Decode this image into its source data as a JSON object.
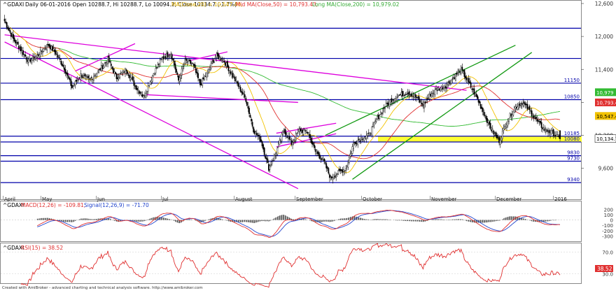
{
  "price_panel": {
    "ticker": "^GDAXI",
    "info_text": "Daily 06-01-2016 Open 10288.7, Hi 10288.7, Lo 10094.2, Close 10134.7 (-1.7%)",
    "ma_short_label": "MA(Close,20) = 10,547.40,",
    "ma_mid_label": "Mid MA(Close,50) = 10,793.43,",
    "ma_long_label": "Long MA(Close,200) = 10,979.02",
    "colors": {
      "ma_short": "#f2c200",
      "ma_mid": "#e03030",
      "ma_long": "#33bb33",
      "channel": "#dd00dd",
      "trend": "#119911",
      "level": "#0000aa",
      "support_zone": "#ffff33"
    }
  },
  "macd_panel": {
    "ticker": "^GDAXI",
    "macd_label": "MACD(12,26) = -109.81,",
    "signal_label": "Signal(12,26,9) = -71.70",
    "colors": {
      "macd": "#e03030",
      "signal": "#2244cc",
      "histogram": "#000000"
    }
  },
  "rsi_panel": {
    "ticker": "^GDAXI",
    "rsi_label": "RSI(15) = 38.52",
    "value_tag": "38.52",
    "colors": {
      "rsi": "#e03030"
    }
  },
  "footer": {
    "credit": "Created with AmiBroker - advanced charting and technical analysis software. http://www.amibroker.com"
  },
  "chart_data": [
    {
      "type": "candlestick",
      "title": "^GDAXI - Daily 06-01-2016",
      "x_months": [
        "April",
        "May",
        "Jun",
        "Jul",
        "August",
        "September",
        "October",
        "November",
        "December",
        "2016"
      ],
      "y_ticks": [
        12600,
        12000,
        11400,
        10800,
        10200,
        9600
      ],
      "ylim": [
        9100,
        12600
      ],
      "grid": false,
      "levels": [
        {
          "value": 12150,
          "label": ""
        },
        {
          "value": 11600,
          "label": ""
        },
        {
          "value": 11150,
          "label": "11150"
        },
        {
          "value": 10850,
          "label": "10850"
        },
        {
          "value": 10185,
          "label": "10185"
        },
        {
          "value": 10080,
          "label": "10080"
        },
        {
          "value": 9830,
          "label": "9830"
        },
        {
          "value": 9730,
          "label": "9730"
        },
        {
          "value": 9340,
          "label": "9340"
        }
      ],
      "support_zone": [
        10080,
        10185
      ],
      "value_tags": [
        {
          "value": 10979,
          "label": "10,979",
          "series": "long"
        },
        {
          "value": 10793,
          "label": "10,793.4",
          "series": "mid"
        },
        {
          "value": 10547,
          "label": "10,547.4",
          "series": "short"
        },
        {
          "value": 10134.7,
          "label": "10,134.7",
          "series": "close"
        }
      ],
      "close_anchors": [
        [
          0,
          12280
        ],
        [
          8,
          11950
        ],
        [
          15,
          11760
        ],
        [
          22,
          11550
        ],
        [
          30,
          11650
        ],
        [
          40,
          11850
        ],
        [
          47,
          11700
        ],
        [
          55,
          11420
        ],
        [
          62,
          11070
        ],
        [
          70,
          11300
        ],
        [
          78,
          11200
        ],
        [
          87,
          11380
        ],
        [
          95,
          11580
        ],
        [
          103,
          11250
        ],
        [
          112,
          11400
        ],
        [
          120,
          11100
        ],
        [
          128,
          10900
        ],
        [
          137,
          11330
        ],
        [
          145,
          11600
        ],
        [
          153,
          11700
        ],
        [
          160,
          11200
        ],
        [
          166,
          11550
        ],
        [
          173,
          11500
        ],
        [
          180,
          11120
        ],
        [
          187,
          11350
        ],
        [
          194,
          11650
        ],
        [
          201,
          11580
        ],
        [
          208,
          11350
        ],
        [
          215,
          11100
        ],
        [
          222,
          10850
        ],
        [
          229,
          10300
        ],
        [
          236,
          10100
        ],
        [
          243,
          9600
        ],
        [
          250,
          9900
        ],
        [
          257,
          10300
        ],
        [
          264,
          10050
        ],
        [
          271,
          10300
        ],
        [
          279,
          10250
        ],
        [
          286,
          9900
        ],
        [
          293,
          9750
        ],
        [
          300,
          9420
        ],
        [
          307,
          9520
        ],
        [
          314,
          9600
        ],
        [
          321,
          10050
        ],
        [
          328,
          10150
        ],
        [
          335,
          10200
        ],
        [
          342,
          10480
        ],
        [
          349,
          10700
        ],
        [
          356,
          10850
        ],
        [
          363,
          10930
        ],
        [
          371,
          10980
        ],
        [
          378,
          10900
        ],
        [
          385,
          10750
        ],
        [
          392,
          10950
        ],
        [
          399,
          11050
        ],
        [
          406,
          11100
        ],
        [
          413,
          11250
        ],
        [
          420,
          11400
        ],
        [
          427,
          11150
        ],
        [
          434,
          10900
        ],
        [
          441,
          10600
        ],
        [
          448,
          10300
        ],
        [
          455,
          10100
        ],
        [
          462,
          10450
        ],
        [
          469,
          10700
        ],
        [
          476,
          10800
        ],
        [
          483,
          10650
        ],
        [
          490,
          10450
        ],
        [
          497,
          10300
        ],
        [
          504,
          10250
        ],
        [
          511,
          10134.7
        ]
      ],
      "channel_lines": [
        [
          [
            0,
            11900
          ],
          [
            270,
            9230
          ]
        ],
        [
          [
            0,
            12030
          ],
          [
            425,
            11020
          ]
        ],
        [
          [
            65,
            11370
          ],
          [
            120,
            11870
          ]
        ],
        [
          [
            130,
            10940
          ],
          [
            270,
            10800
          ]
        ],
        [
          [
            170,
            11560
          ],
          [
            205,
            11720
          ]
        ],
        [
          [
            250,
            10240
          ],
          [
            305,
            10420
          ]
        ],
        [
          [
            250,
            9990
          ],
          [
            305,
            10230
          ]
        ]
      ],
      "trend_lines": [
        [
          [
            295,
            10200
          ],
          [
            470,
            11840
          ]
        ],
        [
          [
            320,
            9400
          ],
          [
            485,
            11710
          ]
        ]
      ]
    },
    {
      "type": "line",
      "title": "MACD(12,26) / Signal(12,26,9)",
      "y_ticks": [
        200,
        100,
        0,
        -100,
        -200,
        -300
      ],
      "ylim": [
        -360,
        270
      ],
      "series": [
        {
          "name": "MACD(12,26)",
          "last": -109.81
        },
        {
          "name": "Signal(12,26,9)",
          "last": -71.7
        }
      ]
    },
    {
      "type": "line",
      "title": "RSI(15)",
      "y_ticks": [
        70,
        30
      ],
      "ylim": [
        15,
        82
      ],
      "series": [
        {
          "name": "RSI(15)",
          "last": 38.52
        }
      ]
    }
  ]
}
